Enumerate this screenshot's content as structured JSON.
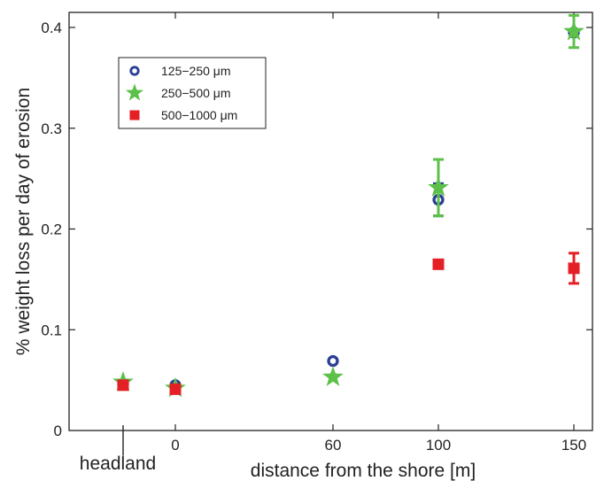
{
  "chart_data": {
    "type": "scatter",
    "title": "",
    "xlabel": "distance from the shore [m]",
    "ylabel": "% weight loss per day of erosion",
    "ylim": [
      0,
      0.42
    ],
    "yticks": [
      "0",
      "0.1",
      "0.2",
      "0.3",
      "0.4"
    ],
    "ytick_values": [
      0,
      0.1,
      0.2,
      0.3,
      0.4
    ],
    "xticks": [
      "headland",
      "0",
      "60",
      "100",
      "150"
    ],
    "grid": false,
    "legend_position": "top-left",
    "series": [
      {
        "name": "125−250 μm",
        "marker": "circle",
        "color": "#2b3f96",
        "points": [
          {
            "x": "headland",
            "y": 0.046,
            "err": 0
          },
          {
            "x": "0",
            "y": 0.045,
            "err": 0
          },
          {
            "x": "60",
            "y": 0.069,
            "err": 0
          },
          {
            "x": "100",
            "y": 0.229,
            "err": 0.016
          },
          {
            "x": "150",
            "y": 0.395,
            "err": 0
          }
        ]
      },
      {
        "name": "250−500 μm",
        "marker": "star",
        "color": "#5cc049",
        "points": [
          {
            "x": "headland",
            "y": 0.048,
            "err": 0
          },
          {
            "x": "0",
            "y": 0.042,
            "err": 0
          },
          {
            "x": "60",
            "y": 0.053,
            "err": 0
          },
          {
            "x": "100",
            "y": 0.241,
            "err": 0.028
          },
          {
            "x": "150",
            "y": 0.396,
            "err": 0.016
          }
        ]
      },
      {
        "name": "500−1000 μm",
        "marker": "square",
        "color": "#e41f26",
        "points": [
          {
            "x": "headland",
            "y": 0.045,
            "err": 0
          },
          {
            "x": "0",
            "y": 0.041,
            "err": 0
          },
          {
            "x": "60",
            "y": null,
            "err": 0
          },
          {
            "x": "100",
            "y": 0.165,
            "err": 0
          },
          {
            "x": "150",
            "y": 0.161,
            "err": 0.015
          }
        ]
      }
    ]
  }
}
